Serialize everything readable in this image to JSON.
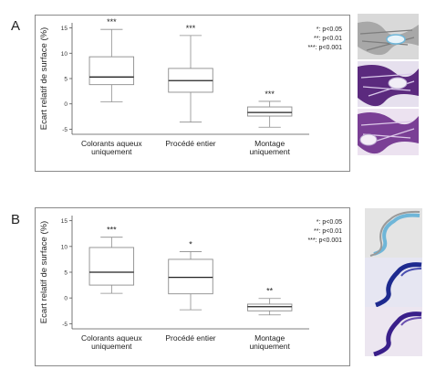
{
  "panels": [
    {
      "letter": "A",
      "ylabel": "Ecart relatif de surface (%)",
      "legend": [
        "*: p<0.05",
        "**: p<0.01",
        "***: p<0.001"
      ],
      "ylim": [
        -6,
        16
      ],
      "yticks": [
        "15",
        "10",
        "5",
        "0",
        "-5"
      ],
      "chart_data": {
        "type": "box",
        "categories": [
          [
            "Colorants aqueux",
            "uniquement"
          ],
          [
            "Procédé entier"
          ],
          [
            "Montage",
            "uniquement"
          ]
        ],
        "boxes": [
          {
            "min": 0.4,
            "q1": 3.8,
            "median": 5.3,
            "q3": 9.3,
            "max": 14.7,
            "sig": "***"
          },
          {
            "min": -3.6,
            "q1": 2.3,
            "median": 4.6,
            "q3": 7.0,
            "max": 13.5,
            "sig": "***"
          },
          {
            "min": -4.6,
            "q1": -2.4,
            "median": -1.7,
            "q3": -0.6,
            "max": 0.5,
            "sig": "***"
          }
        ]
      }
    },
    {
      "letter": "B",
      "ylabel": "Ecart relatif de surface (%)",
      "legend": [
        "*: p<0.05",
        "**: p<0.01",
        "***: p<0.001"
      ],
      "ylim": [
        -6,
        16
      ],
      "yticks": [
        "15",
        "10",
        "5",
        "0",
        "-5"
      ],
      "chart_data": {
        "type": "box",
        "categories": [
          [
            "Colorants aqueux",
            "uniquement"
          ],
          [
            "Procédé entier"
          ],
          [
            "Montage",
            "uniquement"
          ]
        ],
        "boxes": [
          {
            "min": 0.9,
            "q1": 2.5,
            "median": 5.0,
            "q3": 9.8,
            "max": 11.8,
            "sig": "***"
          },
          {
            "min": -2.3,
            "q1": 0.8,
            "median": 4.0,
            "q3": 7.5,
            "max": 9.0,
            "sig": "*"
          },
          {
            "min": -3.3,
            "q1": -2.5,
            "median": -1.7,
            "q3": -1.2,
            "max": -0.1,
            "sig": "**"
          }
        ]
      }
    }
  ],
  "colors": {
    "box_edge": "#8c8c8c",
    "median": "#222222",
    "frame": "#8a8a8a",
    "tissue_gray": "#b7b7b7",
    "tissue_purple": "#5b2a7e",
    "tissue_blue": "#1d2a8f",
    "tissue_cyan": "#6fb6d8"
  }
}
